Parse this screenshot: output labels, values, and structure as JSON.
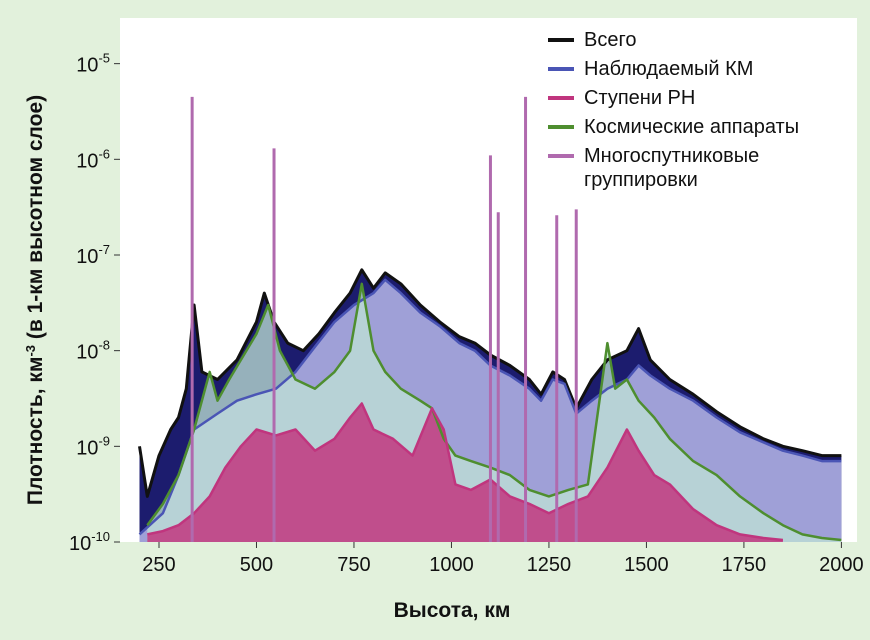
{
  "chart_data": {
    "type": "area",
    "xlabel": "Высота, км",
    "ylabel_parts": [
      "Плотность, км",
      "-3",
      " (в 1-км высотном слое)"
    ],
    "x_ticks": [
      250,
      500,
      750,
      1000,
      1250,
      1500,
      1750,
      2000
    ],
    "y_ticks": [
      {
        "base": "10",
        "exp": "-10",
        "value": 1e-10
      },
      {
        "base": "10",
        "exp": "-9",
        "value": 1e-09
      },
      {
        "base": "10",
        "exp": "-8",
        "value": 1e-08
      },
      {
        "base": "10",
        "exp": "-7",
        "value": 1e-07
      },
      {
        "base": "10",
        "exp": "-6",
        "value": 1e-06
      },
      {
        "base": "10",
        "exp": "-5",
        "value": 1e-05
      }
    ],
    "xlim": [
      150,
      2040
    ],
    "ylim": [
      1e-10,
      3e-05
    ],
    "yscale": "log",
    "grid": false,
    "legend_position": "top-right",
    "series": [
      {
        "name": "Всего",
        "color": "#111111",
        "fill": "#1c1c6e",
        "points": [
          [
            200,
            1e-09
          ],
          [
            220,
            3e-10
          ],
          [
            250,
            8e-10
          ],
          [
            280,
            1.5e-09
          ],
          [
            300,
            2e-09
          ],
          [
            320,
            4e-09
          ],
          [
            340,
            3e-08
          ],
          [
            360,
            6e-09
          ],
          [
            400,
            5e-09
          ],
          [
            450,
            8e-09
          ],
          [
            500,
            2e-08
          ],
          [
            520,
            4e-08
          ],
          [
            545,
            2e-08
          ],
          [
            580,
            1.2e-08
          ],
          [
            620,
            1e-08
          ],
          [
            660,
            1.5e-08
          ],
          [
            700,
            2.5e-08
          ],
          [
            740,
            4e-08
          ],
          [
            770,
            7e-08
          ],
          [
            800,
            4.5e-08
          ],
          [
            830,
            6.5e-08
          ],
          [
            870,
            5e-08
          ],
          [
            920,
            3e-08
          ],
          [
            970,
            2e-08
          ],
          [
            1020,
            1.4e-08
          ],
          [
            1060,
            1.2e-08
          ],
          [
            1100,
            9e-09
          ],
          [
            1150,
            7e-09
          ],
          [
            1200,
            5e-09
          ],
          [
            1230,
            3.5e-09
          ],
          [
            1260,
            6e-09
          ],
          [
            1290,
            5e-09
          ],
          [
            1320,
            2.5e-09
          ],
          [
            1360,
            5e-09
          ],
          [
            1400,
            8e-09
          ],
          [
            1450,
            1e-08
          ],
          [
            1480,
            1.7e-08
          ],
          [
            1510,
            8e-09
          ],
          [
            1560,
            5e-09
          ],
          [
            1620,
            3.5e-09
          ],
          [
            1680,
            2.3e-09
          ],
          [
            1740,
            1.6e-09
          ],
          [
            1800,
            1.2e-09
          ],
          [
            1850,
            1e-09
          ],
          [
            1900,
            9e-10
          ],
          [
            1950,
            8e-10
          ],
          [
            2000,
            8e-10
          ]
        ]
      },
      {
        "name": "Наблюдаемый КМ",
        "color": "#4a55b5",
        "fill": "#a6a8dc",
        "points": [
          [
            200,
            1.2e-10
          ],
          [
            260,
            2e-10
          ],
          [
            300,
            5e-10
          ],
          [
            340,
            1.5e-09
          ],
          [
            400,
            2.2e-09
          ],
          [
            450,
            3e-09
          ],
          [
            500,
            3.5e-09
          ],
          [
            550,
            4e-09
          ],
          [
            600,
            6e-09
          ],
          [
            650,
            1.1e-08
          ],
          [
            700,
            2e-08
          ],
          [
            750,
            3e-08
          ],
          [
            800,
            4e-08
          ],
          [
            830,
            5.5e-08
          ],
          [
            870,
            4e-08
          ],
          [
            920,
            2.5e-08
          ],
          [
            970,
            1.8e-08
          ],
          [
            1020,
            1.2e-08
          ],
          [
            1060,
            1e-08
          ],
          [
            1100,
            7e-09
          ],
          [
            1150,
            5.5e-09
          ],
          [
            1200,
            4e-09
          ],
          [
            1230,
            3e-09
          ],
          [
            1260,
            5e-09
          ],
          [
            1290,
            4.5e-09
          ],
          [
            1320,
            2.2e-09
          ],
          [
            1360,
            3e-09
          ],
          [
            1400,
            4e-09
          ],
          [
            1450,
            5e-09
          ],
          [
            1480,
            7e-09
          ],
          [
            1510,
            5.5e-09
          ],
          [
            1560,
            4e-09
          ],
          [
            1620,
            3e-09
          ],
          [
            1680,
            2e-09
          ],
          [
            1740,
            1.4e-09
          ],
          [
            1800,
            1.1e-09
          ],
          [
            1850,
            9e-10
          ],
          [
            1900,
            8e-10
          ],
          [
            1950,
            7e-10
          ],
          [
            2000,
            7e-10
          ]
        ]
      },
      {
        "name": "Ступени РН",
        "color": "#c0357e",
        "fill": "#c2377f",
        "points": [
          [
            220,
            1.2e-10
          ],
          [
            260,
            1.3e-10
          ],
          [
            300,
            1.5e-10
          ],
          [
            340,
            2e-10
          ],
          [
            380,
            3e-10
          ],
          [
            420,
            6e-10
          ],
          [
            460,
            1e-09
          ],
          [
            500,
            1.5e-09
          ],
          [
            550,
            1.3e-09
          ],
          [
            600,
            1.5e-09
          ],
          [
            650,
            9e-10
          ],
          [
            700,
            1.2e-09
          ],
          [
            740,
            2e-09
          ],
          [
            770,
            2.8e-09
          ],
          [
            800,
            1.5e-09
          ],
          [
            850,
            1.2e-09
          ],
          [
            900,
            8e-10
          ],
          [
            950,
            2.5e-09
          ],
          [
            980,
            1.5e-09
          ],
          [
            1010,
            4e-10
          ],
          [
            1050,
            3.5e-10
          ],
          [
            1100,
            4.5e-10
          ],
          [
            1150,
            3e-10
          ],
          [
            1200,
            2.5e-10
          ],
          [
            1250,
            2e-10
          ],
          [
            1300,
            2.5e-10
          ],
          [
            1350,
            3e-10
          ],
          [
            1400,
            6e-10
          ],
          [
            1450,
            1.5e-09
          ],
          [
            1480,
            9e-10
          ],
          [
            1520,
            5e-10
          ],
          [
            1560,
            4e-10
          ],
          [
            1620,
            2.2e-10
          ],
          [
            1680,
            1.5e-10
          ],
          [
            1740,
            1.2e-10
          ],
          [
            1800,
            1.1e-10
          ],
          [
            1850,
            1.05e-10
          ]
        ]
      },
      {
        "name": "Космические аппараты",
        "color": "#4e8e2f",
        "fill": "#bfe3d6",
        "points": [
          [
            220,
            1.5e-10
          ],
          [
            260,
            2.5e-10
          ],
          [
            300,
            5e-10
          ],
          [
            340,
            1.5e-09
          ],
          [
            380,
            6e-09
          ],
          [
            400,
            3e-09
          ],
          [
            430,
            5e-09
          ],
          [
            460,
            8e-09
          ],
          [
            500,
            1.5e-08
          ],
          [
            530,
            3e-08
          ],
          [
            560,
            1e-08
          ],
          [
            600,
            5e-09
          ],
          [
            650,
            4e-09
          ],
          [
            700,
            6e-09
          ],
          [
            740,
            1e-08
          ],
          [
            770,
            5e-08
          ],
          [
            800,
            1e-08
          ],
          [
            830,
            6e-09
          ],
          [
            870,
            4e-09
          ],
          [
            920,
            3e-09
          ],
          [
            950,
            2.5e-09
          ],
          [
            980,
            1.2e-09
          ],
          [
            1010,
            8e-10
          ],
          [
            1050,
            7e-10
          ],
          [
            1100,
            6e-10
          ],
          [
            1150,
            5e-10
          ],
          [
            1200,
            3.5e-10
          ],
          [
            1250,
            3e-10
          ],
          [
            1300,
            3.5e-10
          ],
          [
            1350,
            4e-10
          ],
          [
            1400,
            1.2e-08
          ],
          [
            1420,
            4e-09
          ],
          [
            1450,
            5e-09
          ],
          [
            1480,
            3e-09
          ],
          [
            1520,
            2e-09
          ],
          [
            1560,
            1.2e-09
          ],
          [
            1620,
            7e-10
          ],
          [
            1680,
            5e-10
          ],
          [
            1740,
            3e-10
          ],
          [
            1800,
            2e-10
          ],
          [
            1850,
            1.5e-10
          ],
          [
            1900,
            1.2e-10
          ],
          [
            1950,
            1.1e-10
          ],
          [
            2000,
            1.05e-10
          ]
        ]
      },
      {
        "name": "Многоспутниковые группировки",
        "name_lines": [
          "Многоспутниковые",
          "группировки"
        ],
        "color": "#b06aae",
        "fill": "#b06aae",
        "spikes": [
          [
            335,
            4.5e-06
          ],
          [
            545,
            1.3e-06
          ],
          [
            1100,
            1.1e-06
          ],
          [
            1120,
            2.8e-07
          ],
          [
            1190,
            4.5e-06
          ],
          [
            1270,
            2.6e-07
          ],
          [
            1320,
            3e-07
          ]
        ]
      }
    ]
  }
}
